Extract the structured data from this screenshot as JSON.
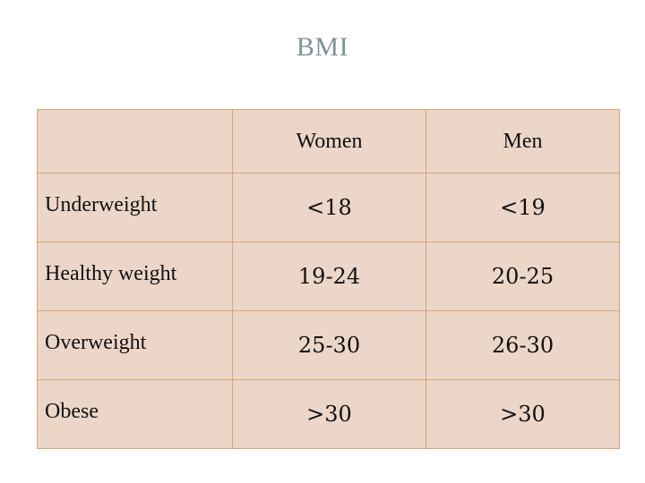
{
  "title": "BMI",
  "table": {
    "headers": [
      "",
      "Women",
      "Men"
    ],
    "rows": [
      {
        "category": "Underweight",
        "women": "<18",
        "men": "<19"
      },
      {
        "category": "Healthy weight",
        "women": "19-24",
        "men": "20-25"
      },
      {
        "category": "Overweight",
        "women": "25-30",
        "men": "26-30"
      },
      {
        "category": "Obese",
        "women": ">30",
        "men": ">30"
      }
    ]
  },
  "colors": {
    "title": "#7f9295",
    "cell_background": "#ecd6c8",
    "border": "#d8a673"
  }
}
